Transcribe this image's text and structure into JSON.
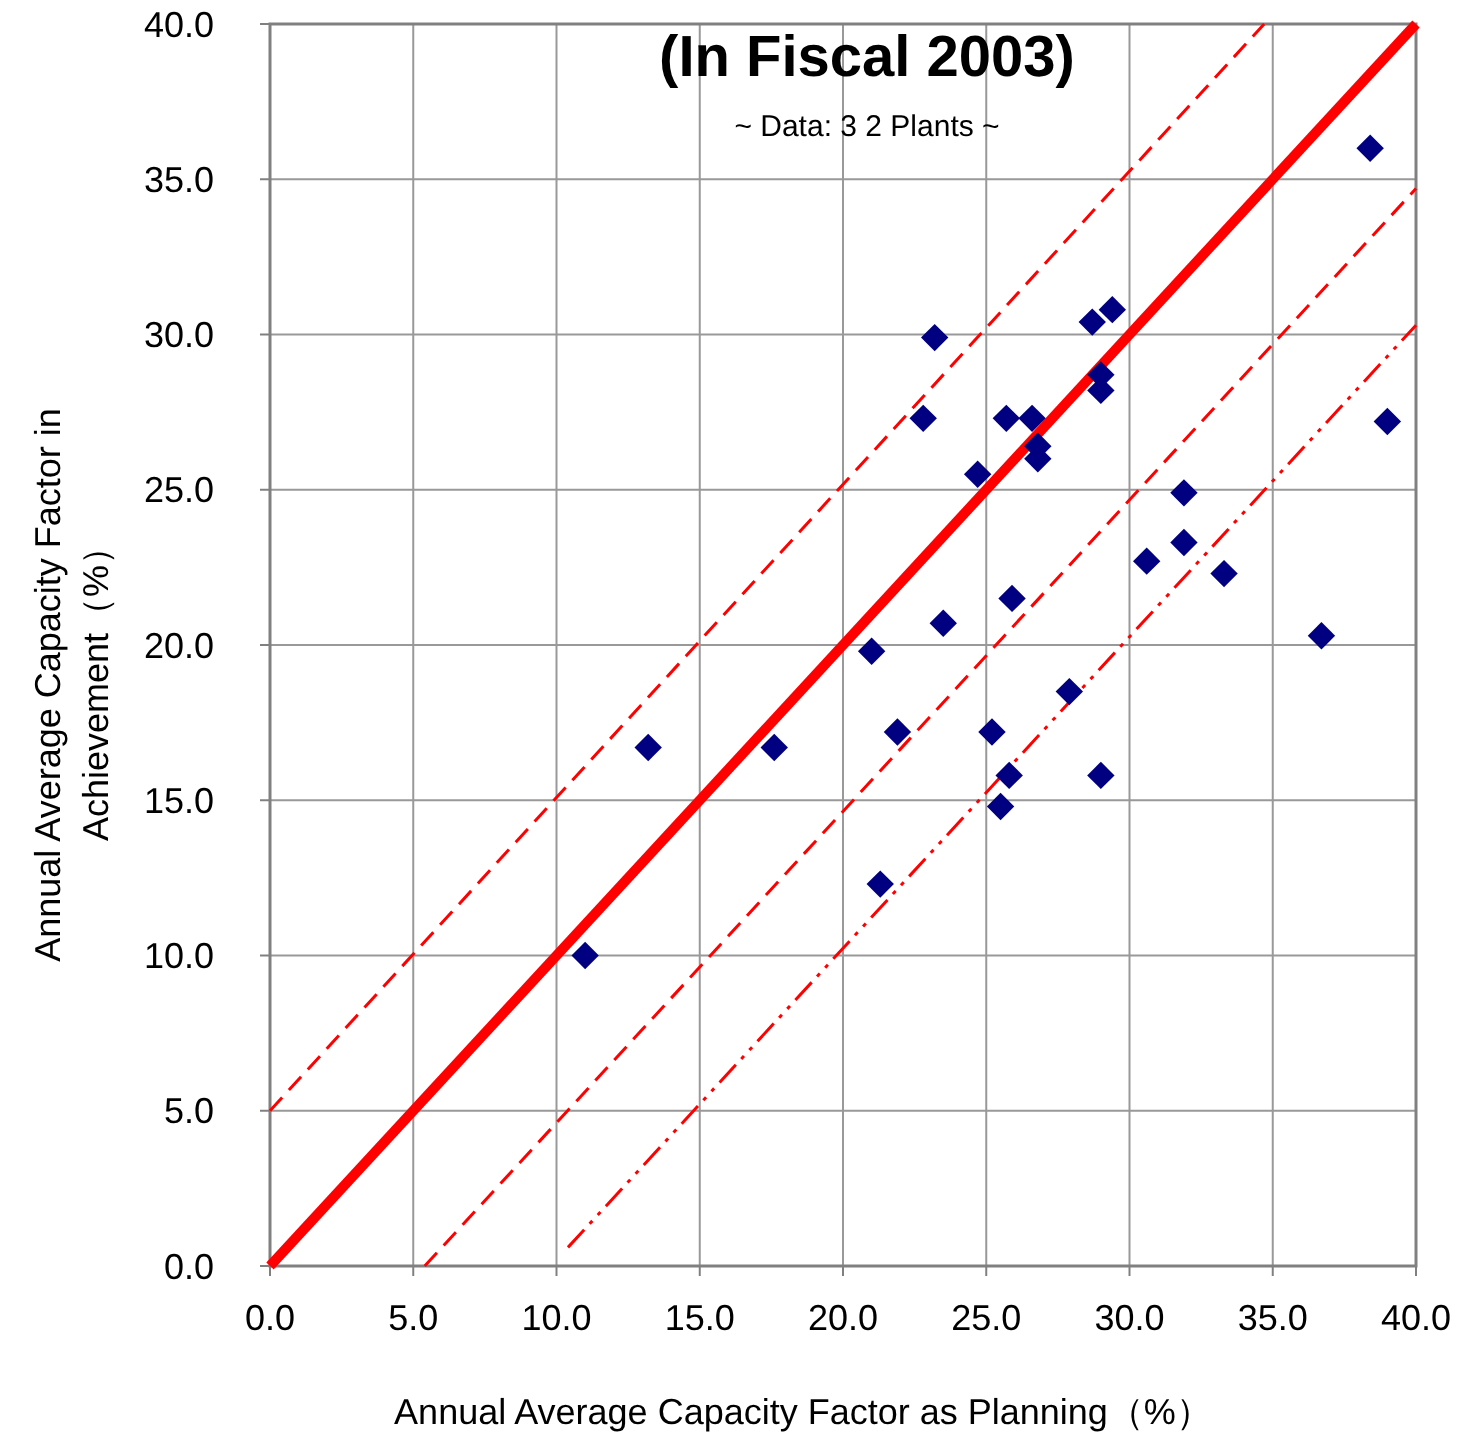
{
  "chart_data": {
    "type": "scatter",
    "title": "(In Fiscal 2003)",
    "subtitle": "~ Data: 3 2 Plants ~",
    "xlabel": "Annual Average Capacity Factor as Planning（%）",
    "ylabel": "Annual Average Capacity Factor in Achievement（%）",
    "xlim": [
      0,
      40
    ],
    "ylim": [
      0,
      40
    ],
    "xticks": [
      {
        "value": 0,
        "label": "0.0"
      },
      {
        "value": 5,
        "label": "5.0"
      },
      {
        "value": 10,
        "label": "10.0"
      },
      {
        "value": 15,
        "label": "15.0"
      },
      {
        "value": 20,
        "label": "20.0"
      },
      {
        "value": 25,
        "label": "25.0"
      },
      {
        "value": 30,
        "label": "30.0"
      },
      {
        "value": 35,
        "label": "35.0"
      },
      {
        "value": 40,
        "label": "40.0"
      }
    ],
    "yticks": [
      {
        "value": 0,
        "label": "0.0"
      },
      {
        "value": 5,
        "label": "5.0"
      },
      {
        "value": 10,
        "label": "10.0"
      },
      {
        "value": 15,
        "label": "15.0"
      },
      {
        "value": 20,
        "label": "20.0"
      },
      {
        "value": 25,
        "label": "25.0"
      },
      {
        "value": 30,
        "label": "30.0"
      },
      {
        "value": 35,
        "label": "35.0"
      },
      {
        "value": 40,
        "label": "40.0"
      }
    ],
    "grid": true,
    "series": [
      {
        "type": "line",
        "color": "#ff0000",
        "line_style": "dashed",
        "marker": "none",
        "x": [
          0,
          34.7
        ],
        "values": [
          5,
          40
        ]
      },
      {
        "type": "line",
        "color": "#ff0000",
        "line_style": "solid",
        "marker": "none",
        "x": [
          0,
          40
        ],
        "values": [
          0,
          40
        ]
      },
      {
        "type": "line",
        "color": "#ff0000",
        "line_style": "dashed",
        "marker": "none",
        "x": [
          5.4,
          40
        ],
        "values": [
          0,
          34.7
        ]
      },
      {
        "type": "line",
        "color": "#ff0000",
        "line_style": "dotted",
        "marker": "none",
        "x": [
          10.4,
          40
        ],
        "values": [
          0.6,
          30.3
        ]
      },
      {
        "color": "#000080",
        "marker": "diamond",
        "x": [
          11.0,
          13.2,
          17.6,
          21.0,
          23.5,
          21.9,
          21.3,
          25.2,
          25.8,
          25.5,
          27.9,
          29.0,
          36.7,
          38.4,
          23.2,
          28.7,
          29.4,
          29.0,
          29.0,
          22.8,
          25.7,
          26.6,
          26.8,
          26.8,
          24.7,
          31.9,
          31.9,
          30.6,
          33.3,
          39.0,
          25.9
        ],
        "values": [
          10.0,
          16.7,
          16.7,
          19.8,
          20.7,
          17.2,
          12.3,
          17.2,
          15.8,
          14.8,
          18.5,
          15.8,
          20.3,
          36.0,
          29.9,
          30.4,
          30.8,
          28.7,
          28.2,
          27.3,
          27.3,
          27.3,
          26.4,
          26.0,
          25.5,
          24.9,
          23.3,
          22.7,
          22.3,
          27.2,
          21.5
        ]
      }
    ]
  }
}
